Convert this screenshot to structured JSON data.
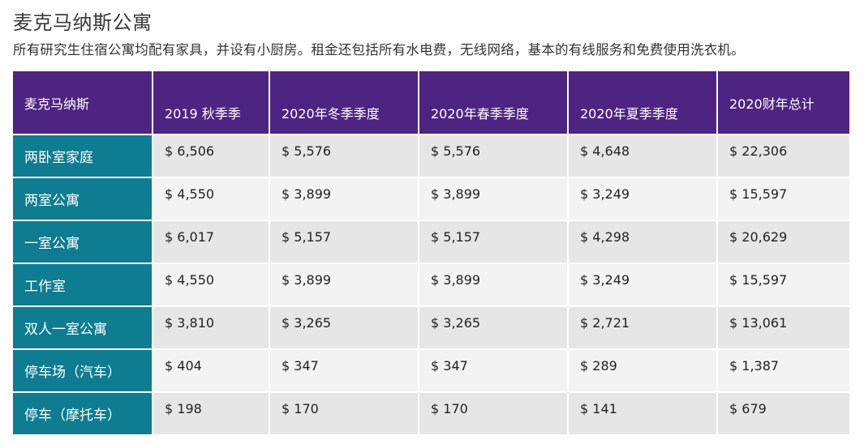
{
  "header": {
    "title": "麦克马纳斯公寓",
    "subtitle": "所有研究生住宿公寓均配有家具，并设有小厨房。租金还包括所有水电费，无线网络，基本的有线服务和免费使用洗衣机。"
  },
  "table": {
    "columns": [
      "麦克马纳斯",
      "2019 秋季季",
      "2020年冬季季度",
      "2020年春季季度",
      "2020年夏季季度",
      "2020财年总计"
    ],
    "rows": [
      {
        "label": "两卧室家庭",
        "values": [
          "$ 6,506",
          "$ 5,576",
          "$ 5,576",
          "$ 4,648",
          "$ 22,306"
        ]
      },
      {
        "label": "两室公寓",
        "values": [
          "$ 4,550",
          "$ 3,899",
          "$ 3,899",
          "$ 3,249",
          "$ 15,597"
        ]
      },
      {
        "label": "一室公寓",
        "values": [
          "$ 6,017",
          "$ 5,157",
          "$ 5,157",
          "$ 4,298",
          "$ 20,629"
        ]
      },
      {
        "label": "工作室",
        "values": [
          "$ 4,550",
          "$ 3,899",
          "$ 3,899",
          "$ 3,249",
          "$ 15,597"
        ]
      },
      {
        "label": "双人一室公寓",
        "values": [
          "$ 3,810",
          "$ 3,265",
          "$ 3,265",
          "$ 2,721",
          "$ 13,061"
        ]
      },
      {
        "label": "停车场（汽车）",
        "values": [
          "$ 404",
          "$ 347",
          "$ 347",
          "$ 289",
          "$ 1,387"
        ]
      },
      {
        "label": "停车（摩托车）",
        "values": [
          "$ 198",
          "$ 170",
          "$ 170",
          "$ 141",
          "$ 679"
        ]
      }
    ]
  },
  "colors": {
    "header_bg": "#4e2482",
    "row_label_bg": "#0e7c91",
    "cell_bg": "#e6e6e6"
  }
}
